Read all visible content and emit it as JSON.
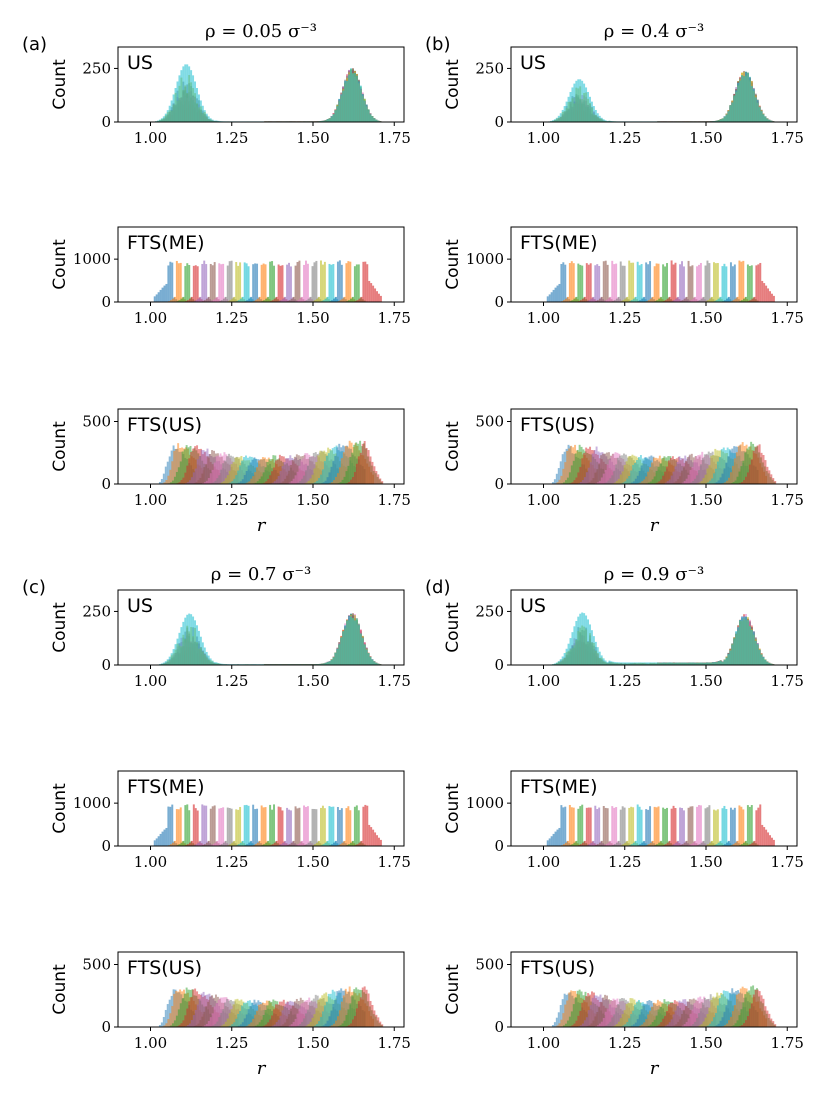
{
  "figure": {
    "panels": [
      {
        "label": "(a)",
        "title": "ρ = 0.05 σ⁻³"
      },
      {
        "label": "(b)",
        "title": "ρ = 0.4 σ⁻³"
      },
      {
        "label": "(c)",
        "title": "ρ = 0.7 σ⁻³"
      },
      {
        "label": "(d)",
        "title": "ρ = 0.9 σ⁻³"
      }
    ],
    "series_colors": [
      "#1f77b4",
      "#ff7f0e",
      "#2ca02c",
      "#d62728",
      "#9467bd",
      "#8c564b",
      "#e377c2",
      "#7f7f7f",
      "#bcbd22",
      "#17becf"
    ]
  },
  "chart_data": [
    {
      "panel": "(a)",
      "subplot": "US",
      "type": "bar",
      "ylabel": "Count",
      "xlabel": "",
      "xlim": [
        0.9,
        1.78
      ],
      "xticks": [
        "1.00",
        "1.25",
        "1.50",
        "1.75"
      ],
      "yticks": [
        "0",
        "250"
      ],
      "ylim": [
        0,
        350
      ],
      "peaks": [
        {
          "r": 1.11,
          "count": 270
        },
        {
          "r": 1.62,
          "count": 255
        }
      ],
      "mid_count": 3
    },
    {
      "panel": "(a)",
      "subplot": "FTS(ME)",
      "type": "bar",
      "ylabel": "Count",
      "xlabel": "",
      "xlim": [
        0.9,
        1.78
      ],
      "xticks": [
        "1.00",
        "1.25",
        "1.50",
        "1.75"
      ],
      "yticks": [
        "0",
        "1000"
      ],
      "ylim": [
        0,
        1750
      ],
      "range": [
        1.0,
        1.73
      ],
      "typical_count": 900
    },
    {
      "panel": "(a)",
      "subplot": "FTS(US)",
      "type": "bar",
      "ylabel": "Count",
      "xlabel": "r",
      "xlim": [
        0.9,
        1.78
      ],
      "xticks": [
        "1.00",
        "1.25",
        "1.50",
        "1.75"
      ],
      "yticks": [
        "0",
        "500"
      ],
      "ylim": [
        0,
        600
      ],
      "range": [
        1.02,
        1.72
      ],
      "peaks": [
        {
          "r": 1.09,
          "count": 330
        },
        {
          "r": 1.65,
          "count": 360
        }
      ],
      "min_count": 230
    },
    {
      "panel": "(b)",
      "subplot": "US",
      "type": "bar",
      "ylabel": "Count",
      "xlabel": "",
      "xlim": [
        0.9,
        1.78
      ],
      "xticks": [
        "1.00",
        "1.25",
        "1.50",
        "1.75"
      ],
      "yticks": [
        "0",
        "250"
      ],
      "ylim": [
        0,
        350
      ],
      "peaks": [
        {
          "r": 1.11,
          "count": 200
        },
        {
          "r": 1.62,
          "count": 245
        }
      ],
      "mid_count": 3
    },
    {
      "panel": "(b)",
      "subplot": "FTS(ME)",
      "type": "bar",
      "ylabel": "Count",
      "xlabel": "",
      "xlim": [
        0.9,
        1.78
      ],
      "xticks": [
        "1.00",
        "1.25",
        "1.50",
        "1.75"
      ],
      "yticks": [
        "0",
        "1000"
      ],
      "ylim": [
        0,
        1750
      ],
      "range": [
        1.0,
        1.73
      ],
      "typical_count": 900
    },
    {
      "panel": "(b)",
      "subplot": "FTS(US)",
      "type": "bar",
      "ylabel": "Count",
      "xlabel": "r",
      "xlim": [
        0.9,
        1.78
      ],
      "xticks": [
        "1.00",
        "1.25",
        "1.50",
        "1.75"
      ],
      "yticks": [
        "0",
        "500"
      ],
      "ylim": [
        0,
        600
      ],
      "range": [
        1.02,
        1.72
      ],
      "peaks": [
        {
          "r": 1.09,
          "count": 330
        },
        {
          "r": 1.65,
          "count": 350
        }
      ],
      "min_count": 230
    },
    {
      "panel": "(c)",
      "subplot": "US",
      "type": "bar",
      "ylabel": "Count",
      "xlabel": "",
      "xlim": [
        0.9,
        1.78
      ],
      "xticks": [
        "1.00",
        "1.25",
        "1.50",
        "1.75"
      ],
      "yticks": [
        "0",
        "250"
      ],
      "ylim": [
        0,
        350
      ],
      "peaks": [
        {
          "r": 1.12,
          "count": 240
        },
        {
          "r": 1.62,
          "count": 250
        }
      ],
      "mid_count": 4
    },
    {
      "panel": "(c)",
      "subplot": "FTS(ME)",
      "type": "bar",
      "ylabel": "Count",
      "xlabel": "",
      "xlim": [
        0.9,
        1.78
      ],
      "xticks": [
        "1.00",
        "1.25",
        "1.50",
        "1.75"
      ],
      "yticks": [
        "0",
        "1000"
      ],
      "ylim": [
        0,
        1750
      ],
      "range": [
        1.0,
        1.73
      ],
      "typical_count": 900
    },
    {
      "panel": "(c)",
      "subplot": "FTS(US)",
      "type": "bar",
      "ylabel": "Count",
      "xlabel": "r",
      "xlim": [
        0.9,
        1.78
      ],
      "xticks": [
        "1.00",
        "1.25",
        "1.50",
        "1.75"
      ],
      "yticks": [
        "0",
        "500"
      ],
      "ylim": [
        0,
        600
      ],
      "range": [
        1.02,
        1.72
      ],
      "peaks": [
        {
          "r": 1.09,
          "count": 330
        },
        {
          "r": 1.65,
          "count": 340
        }
      ],
      "min_count": 220
    },
    {
      "panel": "(d)",
      "subplot": "US",
      "type": "bar",
      "ylabel": "Count",
      "xlabel": "",
      "xlim": [
        0.9,
        1.78
      ],
      "xticks": [
        "1.00",
        "1.25",
        "1.50",
        "1.75"
      ],
      "yticks": [
        "0",
        "250"
      ],
      "ylim": [
        0,
        350
      ],
      "peaks": [
        {
          "r": 1.12,
          "count": 245
        },
        {
          "r": 1.62,
          "count": 240
        }
      ],
      "mid_count": 12
    },
    {
      "panel": "(d)",
      "subplot": "FTS(ME)",
      "type": "bar",
      "ylabel": "Count",
      "xlabel": "",
      "xlim": [
        0.9,
        1.78
      ],
      "xticks": [
        "1.00",
        "1.25",
        "1.50",
        "1.75"
      ],
      "yticks": [
        "0",
        "1000"
      ],
      "ylim": [
        0,
        1750
      ],
      "range": [
        1.0,
        1.73
      ],
      "typical_count": 900
    },
    {
      "panel": "(d)",
      "subplot": "FTS(US)",
      "type": "bar",
      "ylabel": "Count",
      "xlabel": "r",
      "xlim": [
        0.9,
        1.78
      ],
      "xticks": [
        "1.00",
        "1.25",
        "1.50",
        "1.75"
      ],
      "yticks": [
        "0",
        "500"
      ],
      "ylim": [
        0,
        600
      ],
      "range": [
        1.02,
        1.72
      ],
      "peaks": [
        {
          "r": 1.09,
          "count": 310
        },
        {
          "r": 1.65,
          "count": 340
        }
      ],
      "min_count": 220
    }
  ]
}
